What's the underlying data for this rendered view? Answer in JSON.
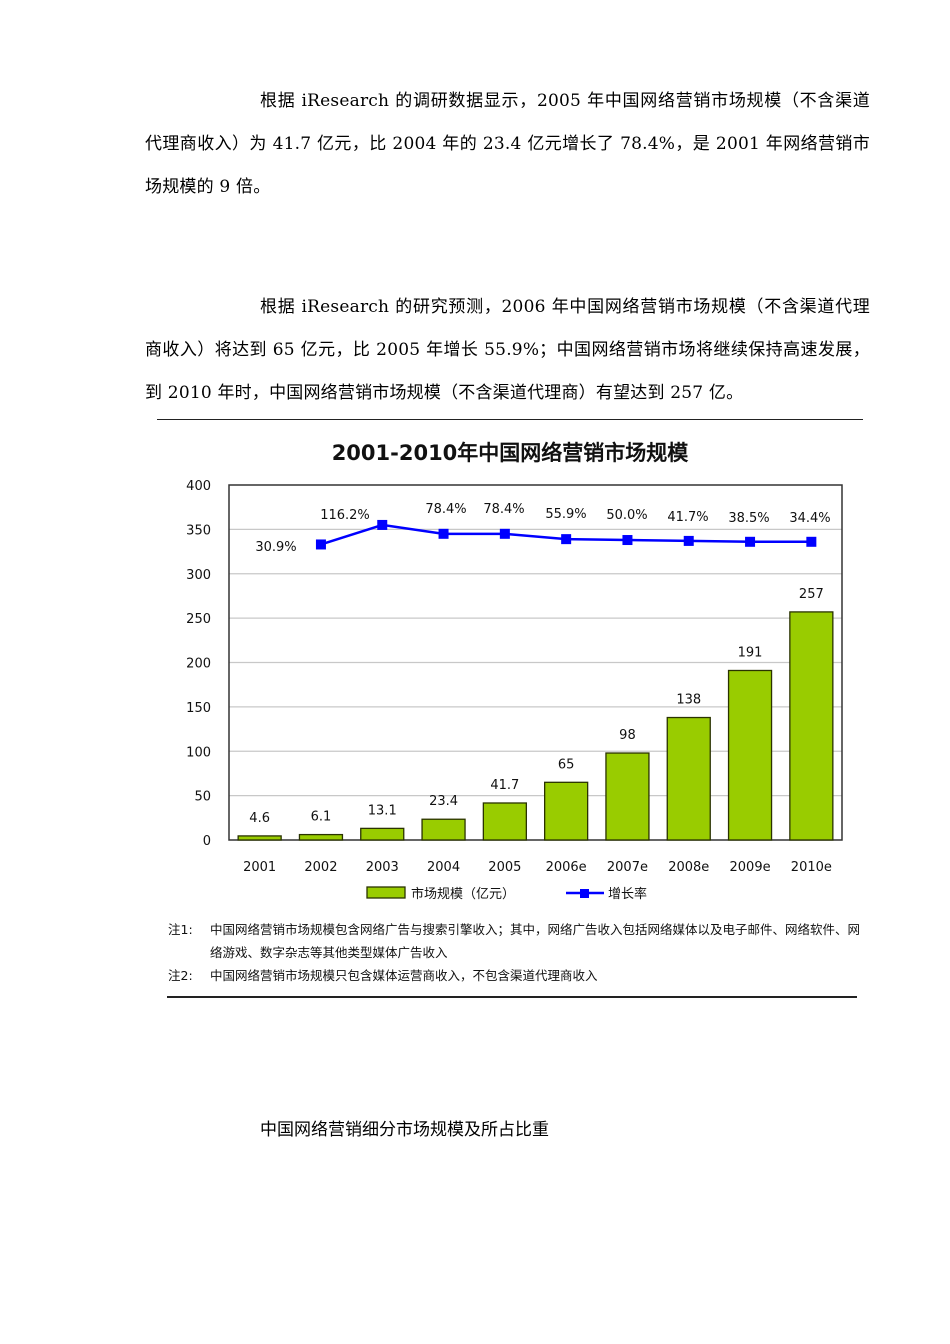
{
  "paragraphs": [
    {
      "text": "根据 iResearch 的调研数据显示，2005 年中国网络营销市场规模（不含渠道代理商收入）为 41.7 亿元，比 2004 年的 23.4 亿元增长了 78.4%，是 2001 年网络营销市场规模的 9 倍。"
    },
    {
      "text": "根据 iResearch 的研究预测，2006 年中国网络营销市场规模（不含渠道代理商收入）将达到 65 亿元，比 2005 年增长 55.9%；中国网络营销市场将继续保持高速发展，到 2010 年时，中国网络营销市场规模（不含渠道代理商）有望达到 257 亿。"
    }
  ],
  "chart": {
    "title": "2001-2010年中国网络营销市场规模",
    "legend": {
      "bar_label": "市场规模（亿元）",
      "line_label": "增长率"
    },
    "notes": [
      {
        "key": "注1:",
        "text": "中国网络营销市场规模包含网络广告与搜索引擎收入；其中，网络广告收入包括网络媒体以及电子邮件、网络软件、网络游戏、数字杂志等其他类型媒体广告收入"
      },
      {
        "key": "注2:",
        "text": "中国网络营销市场规模只包含媒体运营商收入，不包含渠道代理商收入"
      }
    ],
    "colors": {
      "bar_fill": "#99cc00",
      "bar_stroke": "#2a3300",
      "line": "#0000ff",
      "grid": "#c8c8c8",
      "axis": "#333333"
    }
  },
  "chart_data": {
    "type": "bar",
    "title": "2001-2010年中国网络营销市场规模",
    "xlabel": "",
    "ylabel": "",
    "ylim": [
      0,
      400
    ],
    "yticks": [
      0,
      50,
      100,
      150,
      200,
      250,
      300,
      350,
      400
    ],
    "grid": true,
    "legend_position": "bottom",
    "categories": [
      "2001",
      "2002",
      "2003",
      "2004",
      "2005",
      "2006e",
      "2007e",
      "2008e",
      "2009e",
      "2010e"
    ],
    "series": [
      {
        "name": "市场规模（亿元）",
        "type": "bar",
        "values": [
          4.6,
          6.1,
          13.1,
          23.4,
          41.7,
          65,
          98,
          138,
          191,
          257
        ],
        "labels": [
          "4.6",
          "6.1",
          "13.1",
          "23.4",
          "41.7",
          "65",
          "98",
          "138",
          "191",
          "257"
        ]
      },
      {
        "name": "增长率",
        "type": "line",
        "labels": [
          "30.9%",
          "116.2%",
          "78.4%",
          "78.4%",
          "55.9%",
          "50.0%",
          "41.7%",
          "38.5%",
          "34.4%"
        ],
        "label_categories": [
          "2002",
          "2003",
          "2004",
          "2005",
          "2006e",
          "2007e",
          "2008e",
          "2009e",
          "2010e"
        ],
        "plotted_positions_on_left_axis": [
          333,
          355,
          345,
          345,
          339,
          338,
          337,
          336,
          336
        ]
      }
    ],
    "notes": [
      "注1: 中国网络营销市场规模包含网络广告与搜索引擎收入；其中，网络广告收入包括网络媒体以及电子邮件、网络软件、网络游戏、数字杂志等其他类型媒体广告收入",
      "注2: 中国网络营销市场规模只包含媒体运营商收入，不包含渠道代理商收入"
    ]
  },
  "heading": "中国网络营销细分市场规模及所占比重"
}
